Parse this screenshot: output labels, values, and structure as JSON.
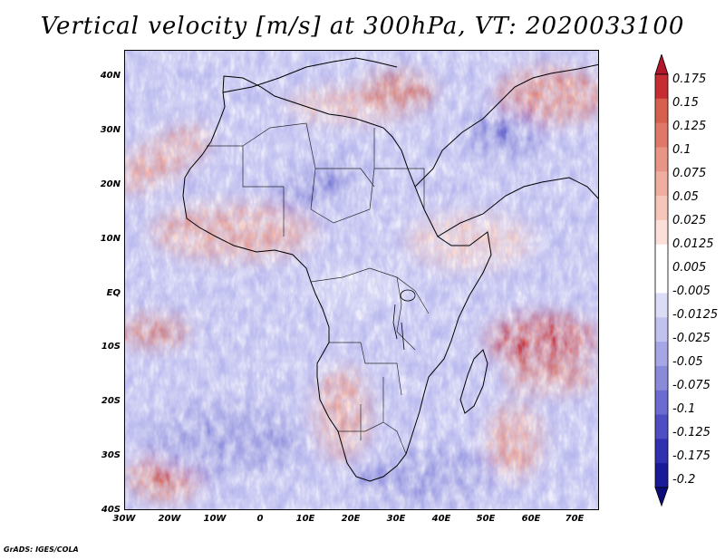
{
  "title": "Vertical velocity [m/s] at 300hPa, VT: 2020033100",
  "footer": "GrADS: IGES/COLA",
  "map": {
    "lat_range": [
      -40,
      45
    ],
    "lon_range": [
      -30,
      75
    ],
    "lat_ticks": [
      "40N",
      "30N",
      "20N",
      "10N",
      "EQ",
      "10S",
      "20S",
      "30S",
      "40S"
    ],
    "lon_ticks": [
      "30W",
      "20W",
      "10W",
      "0",
      "10E",
      "20E",
      "30E",
      "40E",
      "50E",
      "60E",
      "70E"
    ]
  },
  "colorbar": {
    "labels": [
      "0.175",
      "0.15",
      "0.125",
      "0.1",
      "0.075",
      "0.05",
      "0.025",
      "0.0125",
      "0.005",
      "-0.005",
      "-0.0125",
      "-0.025",
      "-0.05",
      "-0.075",
      "-0.1",
      "-0.125",
      "-0.175",
      "-0.2"
    ],
    "colors": [
      "#b2182b",
      "#c62d33",
      "#d6604d",
      "#e0786a",
      "#e99586",
      "#f0aea1",
      "#f6c6bb",
      "#fbe0d9",
      "#ffffff",
      "#ffffff",
      "#dcdcf6",
      "#c2c2ee",
      "#a6a6e6",
      "#8a8adb",
      "#6c6cd0",
      "#4e4ec2",
      "#3030b0",
      "#1a1a96",
      "#0c0c7a"
    ]
  }
}
